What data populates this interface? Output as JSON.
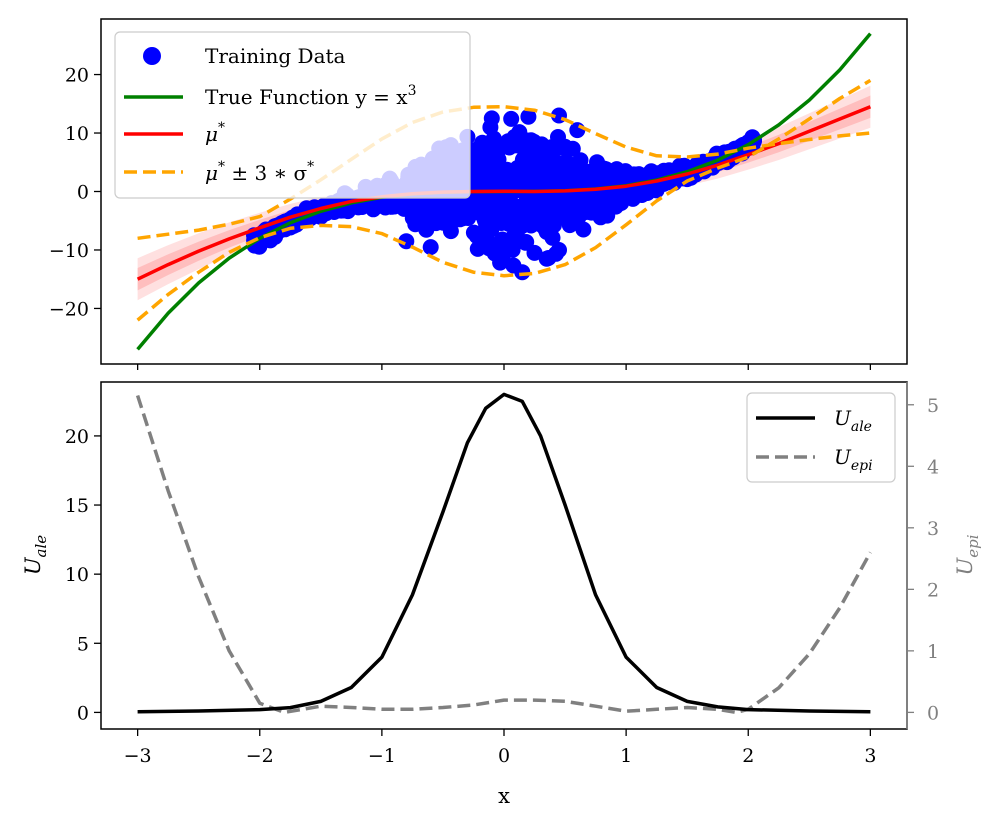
{
  "chart_data": [
    {
      "type": "scatter",
      "panel": "top",
      "xlim": [
        -3.3,
        3.3
      ],
      "ylim": [
        -29.5,
        29.5
      ],
      "yticks": [
        -20,
        -10,
        0,
        10,
        20
      ],
      "ytick_labels": [
        "−20",
        "−10",
        "0",
        "10",
        "20"
      ],
      "xlabel": "",
      "ylabel": "",
      "legend": {
        "position": "upper-left",
        "entries": [
          {
            "label": "Training Data",
            "marker": "dot",
            "color": "#0000ff"
          },
          {
            "label": "True Function y = x",
            "label_sup": "3",
            "marker": "line",
            "color": "#008000"
          },
          {
            "label": "μ",
            "label_sup": "*",
            "marker": "line",
            "color": "#ff0000"
          },
          {
            "label": "μ",
            "label_sup": "*",
            "label_tail": " ± 3 ∗ σ",
            "label_tail_sup": "*",
            "marker": "dashed",
            "color": "#ffa500"
          }
        ]
      },
      "series": [
        {
          "name": "Training Data",
          "kind": "scatter",
          "color": "#0000ff",
          "outliers": [
            [
              -0.1,
              12.5
            ],
            [
              0.2,
              12.8
            ],
            [
              0.45,
              13.0
            ],
            [
              0.6,
              10.5
            ],
            [
              0.15,
              -13.8
            ],
            [
              0.35,
              -11.5
            ],
            [
              0.25,
              -10.5
            ],
            [
              0.45,
              -10.0
            ],
            [
              -0.6,
              -9.5
            ],
            [
              0.65,
              -6.5
            ],
            [
              -2.0,
              -7.5
            ],
            [
              -1.95,
              -6.5
            ],
            [
              -0.8,
              -8.5
            ],
            [
              0.05,
              -9.0
            ]
          ]
        },
        {
          "name": "True Function y = x^3",
          "kind": "line",
          "color": "#008000",
          "x": [
            -3.0,
            -2.75,
            -2.5,
            -2.25,
            -2.0,
            -1.75,
            -1.5,
            -1.25,
            -1.0,
            -0.75,
            -0.5,
            -0.25,
            0.0,
            0.25,
            0.5,
            0.75,
            1.0,
            1.25,
            1.5,
            1.75,
            2.0,
            2.25,
            2.5,
            2.75,
            3.0
          ],
          "y": [
            -27.0,
            -20.8,
            -15.63,
            -11.39,
            -8.0,
            -5.36,
            -3.38,
            -1.95,
            -1.0,
            -0.42,
            -0.13,
            -0.02,
            0.0,
            0.02,
            0.13,
            0.42,
            1.0,
            1.95,
            3.38,
            5.36,
            8.0,
            11.39,
            15.63,
            20.8,
            27.0
          ]
        },
        {
          "name": "μ*",
          "kind": "line",
          "color": "#ff0000",
          "x": [
            -3.0,
            -2.75,
            -2.5,
            -2.25,
            -2.0,
            -1.75,
            -1.5,
            -1.25,
            -1.0,
            -0.75,
            -0.5,
            -0.25,
            0.0,
            0.25,
            0.5,
            0.75,
            1.0,
            1.25,
            1.5,
            1.75,
            2.0,
            2.25,
            2.5,
            2.75,
            3.0
          ],
          "y": [
            -15.0,
            -12.5,
            -10.2,
            -8.1,
            -6.2,
            -4.4,
            -2.9,
            -1.7,
            -0.9,
            -0.4,
            -0.1,
            0.0,
            0.05,
            0.0,
            0.1,
            0.4,
            0.9,
            1.8,
            3.0,
            4.5,
            6.3,
            8.2,
            10.3,
            12.4,
            14.5
          ]
        },
        {
          "name": "μ* ± 3∗σ* upper",
          "kind": "dashed",
          "color": "#ffa500",
          "x": [
            -3.0,
            -2.75,
            -2.5,
            -2.25,
            -2.0,
            -1.75,
            -1.5,
            -1.25,
            -1.0,
            -0.75,
            -0.5,
            -0.25,
            0.0,
            0.25,
            0.5,
            0.75,
            1.0,
            1.25,
            1.5,
            1.75,
            2.0,
            2.25,
            2.5,
            2.75,
            3.0
          ],
          "y": [
            -8.0,
            -7.3,
            -6.6,
            -5.6,
            -4.3,
            -1.3,
            2.0,
            5.5,
            9.0,
            11.8,
            13.6,
            14.4,
            14.5,
            13.9,
            12.3,
            9.9,
            7.6,
            6.1,
            5.9,
            6.4,
            7.4,
            8.2,
            8.9,
            9.5,
            10.0
          ]
        },
        {
          "name": "μ* ± 3∗σ* lower",
          "kind": "dashed",
          "color": "#ffa500",
          "x": [
            -3.0,
            -2.75,
            -2.5,
            -2.25,
            -2.0,
            -1.75,
            -1.5,
            -1.25,
            -1.0,
            -0.75,
            -0.5,
            -0.25,
            0.0,
            0.25,
            0.5,
            0.75,
            1.0,
            1.25,
            1.5,
            1.75,
            2.0,
            2.25,
            2.5,
            2.75,
            3.0
          ],
          "y": [
            -22.0,
            -17.6,
            -13.8,
            -10.4,
            -7.9,
            -6.3,
            -5.8,
            -6.0,
            -7.2,
            -9.5,
            -12.1,
            -13.8,
            -14.4,
            -14.0,
            -12.5,
            -9.6,
            -5.7,
            -1.6,
            1.8,
            4.0,
            5.9,
            9.0,
            12.4,
            15.9,
            19.0
          ]
        }
      ]
    },
    {
      "type": "line",
      "panel": "bottom",
      "xlim": [
        -3.3,
        3.3
      ],
      "ylim": [
        -1.2,
        23.9
      ],
      "y2lim": [
        -0.27,
        5.37
      ],
      "xticks": [
        -3,
        -2,
        -1,
        0,
        1,
        2,
        3
      ],
      "xtick_labels": [
        "−3",
        "−2",
        "−1",
        "0",
        "1",
        "2",
        "3"
      ],
      "yticks": [
        0,
        5,
        10,
        15,
        20
      ],
      "ytick_labels": [
        "0",
        "5",
        "10",
        "15",
        "20"
      ],
      "y2ticks": [
        0,
        1,
        2,
        3,
        4,
        5
      ],
      "y2tick_labels": [
        "0",
        "1",
        "2",
        "3",
        "4",
        "5"
      ],
      "xlabel": "x",
      "ylabel": "U",
      "ylabel_sub": "ale",
      "y2label": "U",
      "y2label_sub": "epi",
      "legend": {
        "position": "upper-right",
        "entries": [
          {
            "label": "U",
            "label_sub": "ale",
            "marker": "line",
            "color": "#000000"
          },
          {
            "label": "U",
            "label_sub": "epi",
            "marker": "dashed",
            "color": "#808080"
          }
        ]
      },
      "series": [
        {
          "name": "U_ale",
          "axis": "left",
          "kind": "line",
          "color": "#000000",
          "x": [
            -3.0,
            -2.5,
            -2.0,
            -1.75,
            -1.5,
            -1.25,
            -1.0,
            -0.75,
            -0.5,
            -0.3,
            -0.15,
            0.0,
            0.15,
            0.3,
            0.5,
            0.75,
            1.0,
            1.25,
            1.5,
            1.75,
            2.0,
            2.5,
            3.0
          ],
          "y": [
            0.05,
            0.1,
            0.2,
            0.35,
            0.8,
            1.8,
            4.0,
            8.5,
            14.5,
            19.5,
            22.0,
            23.0,
            22.5,
            20.0,
            15.0,
            8.5,
            4.0,
            1.8,
            0.8,
            0.4,
            0.2,
            0.1,
            0.05
          ]
        },
        {
          "name": "U_epi",
          "axis": "right",
          "kind": "dashed",
          "color": "#808080",
          "x": [
            -3.0,
            -2.75,
            -2.5,
            -2.25,
            -2.0,
            -1.8,
            -1.5,
            -1.25,
            -1.0,
            -0.75,
            -0.5,
            -0.25,
            0.0,
            0.25,
            0.5,
            0.75,
            1.0,
            1.25,
            1.5,
            1.75,
            1.9,
            2.0,
            2.25,
            2.5,
            2.75,
            3.0
          ],
          "y": [
            5.15,
            3.6,
            2.2,
            1.0,
            0.15,
            0.0,
            0.1,
            0.08,
            0.05,
            0.05,
            0.08,
            0.12,
            0.2,
            0.2,
            0.18,
            0.1,
            0.02,
            0.05,
            0.08,
            0.05,
            0.0,
            0.05,
            0.4,
            0.95,
            1.7,
            2.6
          ]
        }
      ]
    }
  ]
}
